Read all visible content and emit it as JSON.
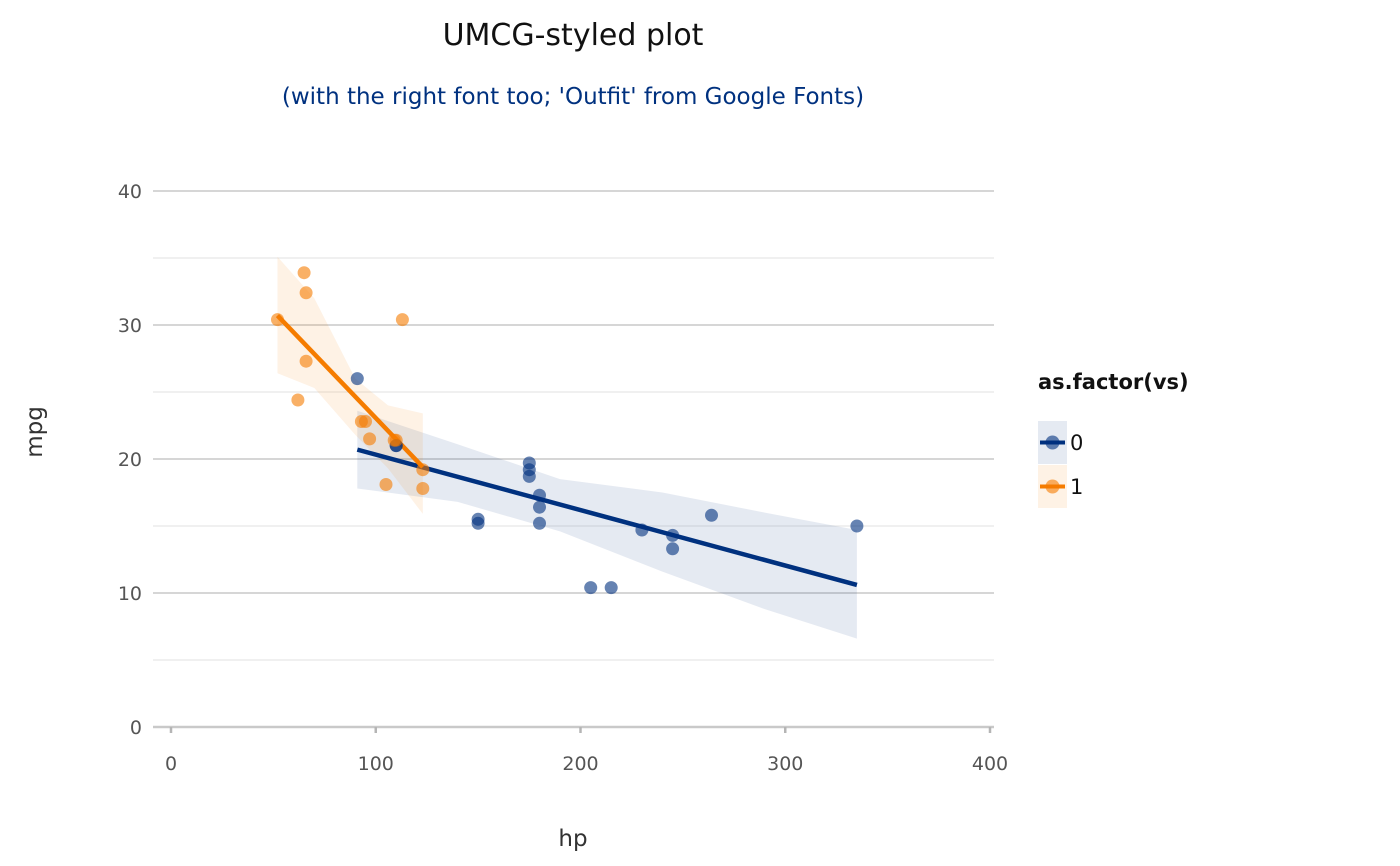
{
  "chart_data": {
    "type": "scatter",
    "title": "UMCG-styled plot",
    "subtitle": "(with the right font too; 'Outfit' from Google Fonts)",
    "xlabel": "hp",
    "ylabel": "mpg",
    "xlim": [
      0,
      400
    ],
    "ylim": [
      0,
      40
    ],
    "x_ticks": [
      0,
      100,
      200,
      300,
      400
    ],
    "y_ticks": [
      0,
      10,
      20,
      30,
      40
    ],
    "grid": true,
    "legend": {
      "title": "as.factor(vs)",
      "position": "right"
    },
    "colors": {
      "0": "#00317f",
      "1": "#f57c00",
      "grid": "#d5d5d5",
      "subtitle": "#00317f"
    },
    "series": [
      {
        "name": "0",
        "color": "#00317f",
        "points": [
          [
            110,
            21.0
          ],
          [
            110,
            21.0
          ],
          [
            175,
            18.7
          ],
          [
            245,
            14.3
          ],
          [
            180,
            16.4
          ],
          [
            180,
            17.3
          ],
          [
            180,
            15.2
          ],
          [
            205,
            10.4
          ],
          [
            215,
            10.4
          ],
          [
            230,
            14.7
          ],
          [
            150,
            15.5
          ],
          [
            150,
            15.2
          ],
          [
            245,
            13.3
          ],
          [
            175,
            19.2
          ],
          [
            91,
            26.0
          ],
          [
            264,
            15.8
          ],
          [
            175,
            19.7
          ],
          [
            335,
            15.0
          ]
        ],
        "fit": {
          "x": [
            91,
            335
          ],
          "y": [
            20.7,
            10.6
          ]
        },
        "ci": {
          "x": [
            91,
            140,
            190,
            240,
            290,
            335
          ],
          "lower": [
            17.8,
            16.8,
            14.6,
            11.6,
            8.8,
            6.6
          ],
          "upper": [
            23.6,
            21.1,
            18.5,
            17.5,
            16.0,
            14.7
          ]
        }
      },
      {
        "name": "1",
        "color": "#f57c00",
        "points": [
          [
            93,
            22.8
          ],
          [
            110,
            21.4
          ],
          [
            105,
            18.1
          ],
          [
            62,
            24.4
          ],
          [
            95,
            22.8
          ],
          [
            123,
            19.2
          ],
          [
            123,
            17.8
          ],
          [
            66,
            32.4
          ],
          [
            52,
            30.4
          ],
          [
            65,
            33.9
          ],
          [
            97,
            21.5
          ],
          [
            66,
            27.3
          ],
          [
            113,
            30.4
          ],
          [
            109,
            21.4
          ]
        ],
        "fit": {
          "x": [
            52,
            123
          ],
          "y": [
            30.7,
            19.4
          ]
        },
        "ci": {
          "x": [
            52,
            70,
            90,
            106,
            123
          ],
          "lower": [
            26.4,
            25.3,
            21.8,
            19.3,
            15.9
          ],
          "upper": [
            35.1,
            32.0,
            26.0,
            24.0,
            23.4
          ]
        }
      }
    ]
  }
}
